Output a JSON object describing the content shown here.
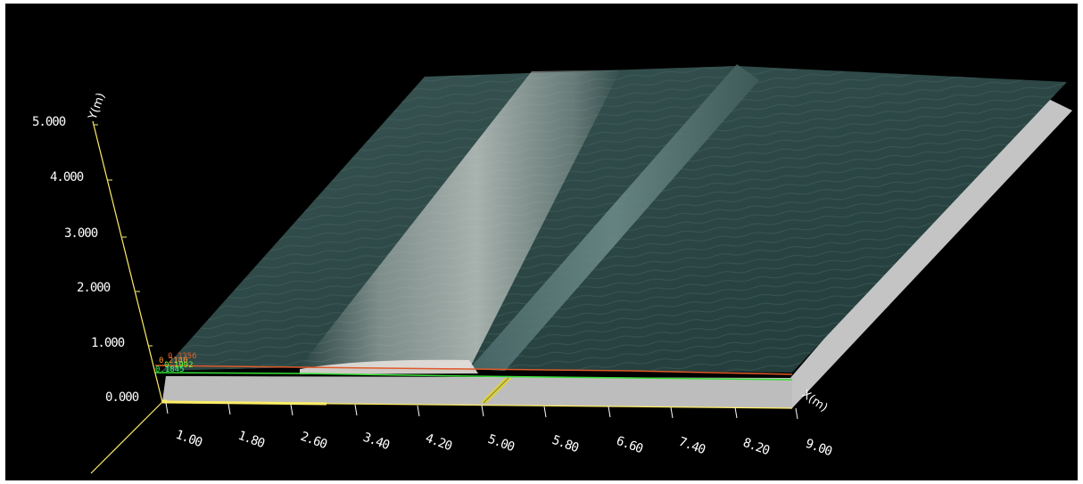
{
  "viewer": {
    "background": "#000000"
  },
  "axes": {
    "y_unit": "Y(m)",
    "x_unit": "X(m)",
    "y_ticks": [
      "5.000",
      "4.000",
      "3.000",
      "2.000",
      "1.000",
      "0.000"
    ],
    "x_ticks": [
      "1.00",
      "1.80",
      "2.60",
      "3.40",
      "4.20",
      "5.00",
      "5.80",
      "6.60",
      "7.40",
      "8.20",
      "9.00"
    ],
    "y_axis_color": "#ffee66",
    "x_axis_color": "#ffee66"
  },
  "probe_labels": [
    {
      "text": "0.2356",
      "color": "#e05a2a"
    },
    {
      "text": "0.2140",
      "color": "#ff9933"
    },
    {
      "text": "0.1992",
      "color": "#66ff33"
    },
    {
      "text": "0.1845",
      "color": "#33ff66"
    }
  ],
  "scene": {
    "water_color": "#2d4848",
    "foam_color": "#b8c0bc",
    "bed_color": "#c4c4c4",
    "gate_color": "#d9d14a",
    "free_surface_line_color": "#e05a2a",
    "bottom_line_color": "#33dd33"
  }
}
